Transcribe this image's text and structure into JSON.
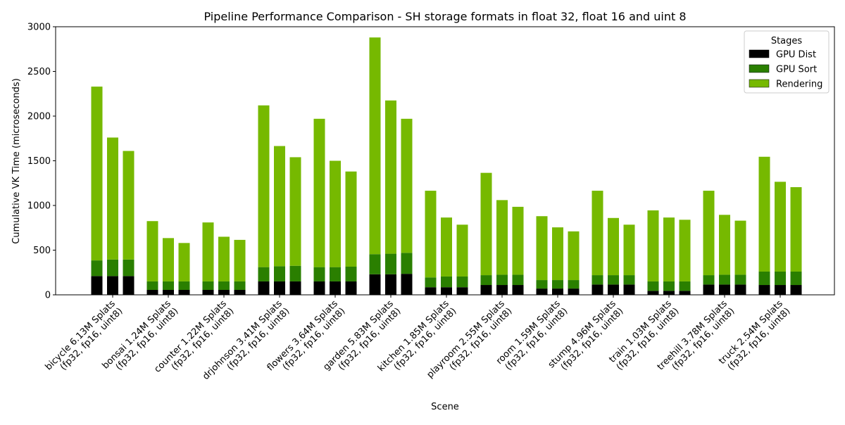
{
  "chart_data": {
    "type": "bar",
    "stacked": true,
    "title": "Pipeline Performance Comparison - SH storage formats in float 32, float 16 and uint 8",
    "xlabel": "Scene",
    "ylabel": "Cumulative VK Time (microseconds)",
    "ylim": [
      0,
      3000
    ],
    "yticks": [
      0,
      500,
      1000,
      1500,
      2000,
      2500,
      3000
    ],
    "legend": {
      "title": "Stages",
      "position": "top-right"
    },
    "categories": [
      "bicycle 6.13M Splats\n(fp32, fp16, uint8)",
      "bonsai 1.24M Splats\n(fp32, fp16, uint8)",
      "counter 1.22M Splats\n(fp32, fp16, uint8)",
      "drjohnson 3.41M Splats\n(fp32, fp16, uint8)",
      "flowers 3.64M Splats\n(fp32, fp16, uint8)",
      "garden 5.83M Splats\n(fp32, fp16, uint8)",
      "kitchen 1.85M Splats\n(fp32, fp16, uint8)",
      "playroom 2.55M Splats\n(fp32, fp16, uint8)",
      "room 1.59M Splats\n(fp32, fp16, uint8)",
      "stump 4.96M Splats\n(fp32, fp16, uint8)",
      "train 1.03M Splats\n(fp32, fp16, uint8)",
      "treehill 3.78M Splats\n(fp32, fp16, uint8)",
      "truck 2.54M Splats\n(fp32, fp16, uint8)"
    ],
    "formats": [
      "fp32",
      "fp16",
      "uint8"
    ],
    "series": [
      {
        "name": "GPU Dist",
        "color": "#000000",
        "values": [
          [
            210,
            210,
            210
          ],
          [
            55,
            55,
            55
          ],
          [
            55,
            55,
            55
          ],
          [
            150,
            150,
            150
          ],
          [
            150,
            150,
            150
          ],
          [
            230,
            230,
            235
          ],
          [
            85,
            85,
            85
          ],
          [
            110,
            110,
            110
          ],
          [
            70,
            70,
            70
          ],
          [
            115,
            115,
            115
          ],
          [
            45,
            45,
            45
          ],
          [
            115,
            115,
            115
          ],
          [
            110,
            110,
            110
          ]
        ]
      },
      {
        "name": "GPU Sort",
        "color": "#2a7f00",
        "values": [
          [
            175,
            185,
            185
          ],
          [
            95,
            95,
            95
          ],
          [
            95,
            95,
            95
          ],
          [
            160,
            170,
            175
          ],
          [
            160,
            160,
            165
          ],
          [
            225,
            230,
            235
          ],
          [
            110,
            120,
            120
          ],
          [
            110,
            115,
            115
          ],
          [
            95,
            95,
            95
          ],
          [
            105,
            105,
            105
          ],
          [
            105,
            105,
            105
          ],
          [
            105,
            110,
            110
          ],
          [
            150,
            150,
            150
          ]
        ]
      },
      {
        "name": "Rendering",
        "color": "#76b900",
        "values": [
          [
            1945,
            1365,
            1215
          ],
          [
            675,
            485,
            430
          ],
          [
            660,
            500,
            465
          ],
          [
            1810,
            1345,
            1215
          ],
          [
            1660,
            1190,
            1065
          ],
          [
            2425,
            1715,
            1500
          ],
          [
            970,
            660,
            580
          ],
          [
            1145,
            835,
            760
          ],
          [
            715,
            590,
            545
          ],
          [
            945,
            640,
            565
          ],
          [
            795,
            715,
            690
          ],
          [
            945,
            670,
            605
          ],
          [
            1285,
            1005,
            945
          ]
        ]
      }
    ]
  }
}
